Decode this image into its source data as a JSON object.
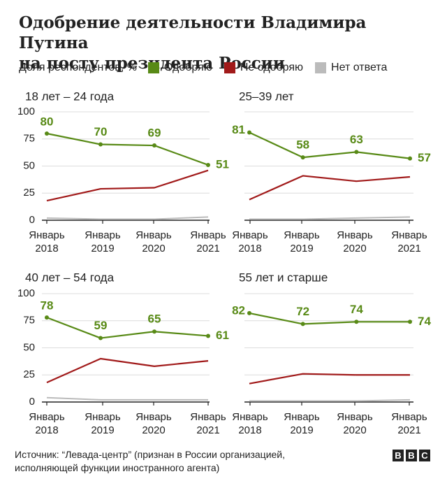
{
  "title_lines": [
    "Одобрение деятельности Владимира Путина",
    "на посту президента России"
  ],
  "legend": {
    "lead": "Доля респондентов, %",
    "items": [
      {
        "label": "Одобряю",
        "color": "#588a16"
      },
      {
        "label": "Не одобряю",
        "color": "#a11a1a"
      },
      {
        "label": "Нет ответа",
        "color": "#bbbbbb"
      }
    ]
  },
  "chart_data": [
    {
      "type": "line",
      "title": "18 лет – 24 года",
      "x": [
        "Январь 2018",
        "Январь 2019",
        "Январь 2020",
        "Январь 2021"
      ],
      "ylim": [
        0,
        100
      ],
      "yticks": [
        0,
        25,
        50,
        75,
        100
      ],
      "series": [
        {
          "name": "Одобряю",
          "values": [
            80,
            70,
            69,
            51
          ],
          "data_labels": [
            80,
            70,
            69,
            51
          ]
        },
        {
          "name": "Не одобряю",
          "values": [
            18,
            29,
            30,
            46
          ]
        },
        {
          "name": "Нет ответа",
          "values": [
            2,
            1,
            1,
            3
          ]
        }
      ]
    },
    {
      "type": "line",
      "title": "25–39 лет",
      "x": [
        "Январь 2018",
        "Январь 2019",
        "Январь 2020",
        "Январь 2021"
      ],
      "ylim": [
        0,
        100
      ],
      "yticks": [
        0,
        25,
        50,
        75,
        100
      ],
      "series": [
        {
          "name": "Одобряю",
          "values": [
            81,
            58,
            63,
            57
          ],
          "data_labels": [
            81,
            58,
            63,
            57
          ]
        },
        {
          "name": "Не одобряю",
          "values": [
            19,
            41,
            36,
            40
          ]
        },
        {
          "name": "Нет ответа",
          "values": [
            1,
            1,
            2,
            3
          ]
        }
      ]
    },
    {
      "type": "line",
      "title": "40 лет – 54 года",
      "x": [
        "Январь 2018",
        "Январь 2019",
        "Январь 2020",
        "Январь 2021"
      ],
      "ylim": [
        0,
        100
      ],
      "yticks": [
        0,
        25,
        50,
        75,
        100
      ],
      "series": [
        {
          "name": "Одобряю",
          "values": [
            78,
            59,
            65,
            61
          ],
          "data_labels": [
            78,
            59,
            65,
            61
          ]
        },
        {
          "name": "Не одобряю",
          "values": [
            18,
            40,
            33,
            38
          ]
        },
        {
          "name": "Нет ответа",
          "values": [
            4,
            2,
            2,
            2
          ]
        }
      ]
    },
    {
      "type": "line",
      "title": "55 лет и старше",
      "x": [
        "Январь 2018",
        "Январь 2019",
        "Январь 2020",
        "Январь 2021"
      ],
      "ylim": [
        0,
        100
      ],
      "yticks": [
        0,
        25,
        50,
        75,
        100
      ],
      "series": [
        {
          "name": "Одобряю",
          "values": [
            82,
            72,
            74,
            74
          ],
          "data_labels": [
            82,
            72,
            74,
            74
          ]
        },
        {
          "name": "Не одобряю",
          "values": [
            17,
            26,
            25,
            25
          ]
        },
        {
          "name": "Нет ответа",
          "values": [
            1,
            1,
            1,
            2
          ]
        }
      ]
    }
  ],
  "footer_lines": [
    "Источник: “Левада-центр” (признан в России организацией,",
    "исполняющей функции иностранного агента)"
  ],
  "logo_letters": [
    "B",
    "B",
    "C"
  ]
}
